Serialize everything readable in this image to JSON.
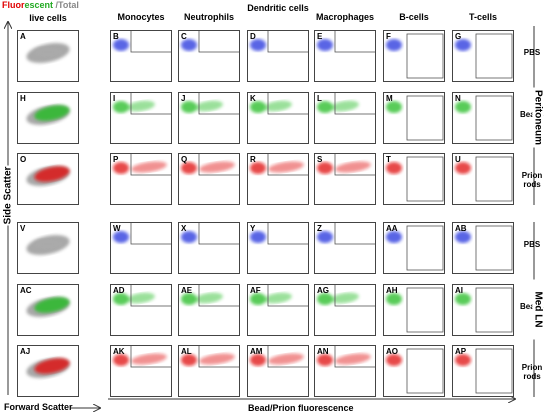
{
  "header": {
    "title_parts": [
      "Fluor",
      "escent",
      " /Total"
    ],
    "columns": [
      "live cells",
      "Monocytes",
      "Neutrophils",
      "Dendritic cells",
      "Macrophages",
      "B-cells",
      "T-cells"
    ]
  },
  "groups": [
    {
      "name": "Peritoneum",
      "rows": [
        "PBS",
        "Beads",
        "Prion rods"
      ]
    },
    {
      "name": "Med LN",
      "rows": [
        "PBS",
        "Beads",
        "Prion rods"
      ]
    }
  ],
  "panels": [
    [
      "A",
      "B",
      "C",
      "D",
      "E",
      "F",
      "G"
    ],
    [
      "H",
      "I",
      "J",
      "K",
      "L",
      "M",
      "N"
    ],
    [
      "O",
      "P",
      "Q",
      "R",
      "S",
      "T",
      "U"
    ],
    [
      "V",
      "W",
      "X",
      "Y",
      "Z",
      "AA",
      "AB"
    ],
    [
      "AC",
      "AD",
      "AE",
      "AF",
      "AG",
      "AH",
      "AI"
    ],
    [
      "AJ",
      "AK",
      "AL",
      "AM",
      "AN",
      "AO",
      "AP"
    ]
  ],
  "axes": {
    "y": "Side Scatter",
    "x_live": "Forward Scatter",
    "x": "Bead/Prion fluorescence"
  }
}
